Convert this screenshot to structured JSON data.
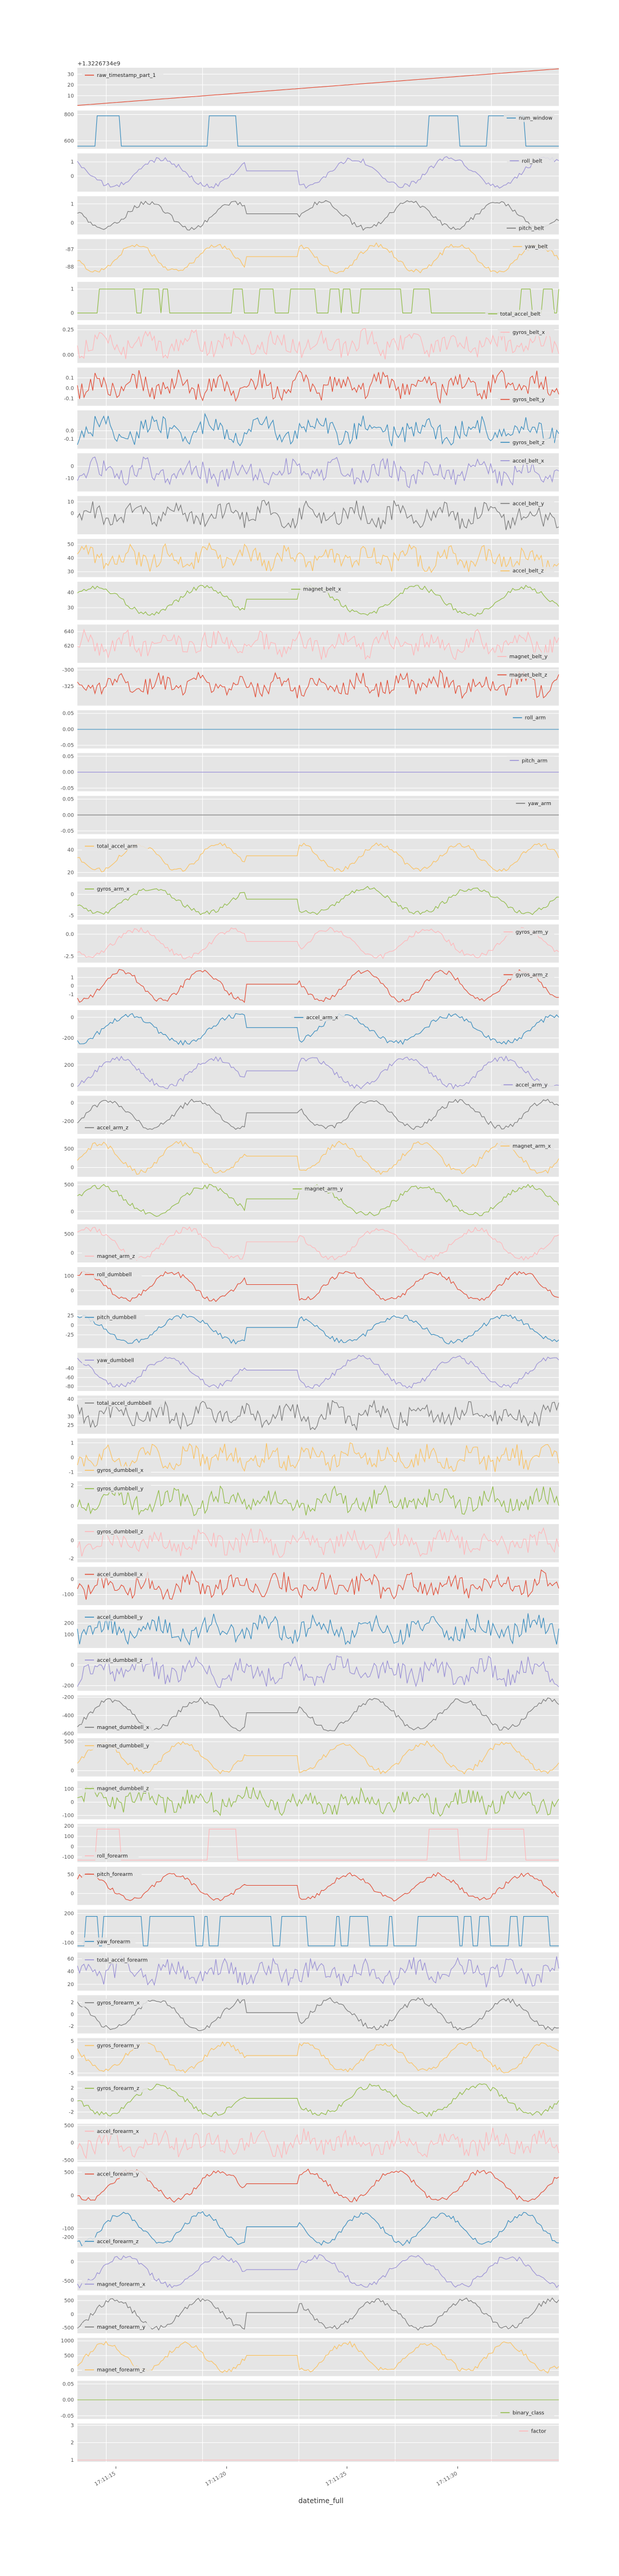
{
  "chart_data": {
    "type": "line",
    "xlabel": "datetime_full",
    "x_tick_labels": [
      "17:11:15",
      "17:11:20",
      "17:11:25",
      "17:11:30"
    ],
    "top_offset_label": "+1.3226734e9",
    "grid": true,
    "background": "#e5e5e5",
    "palette": [
      "#E24A33",
      "#348ABD",
      "#988ED5",
      "#777777",
      "#FBC15E",
      "#8EBA42",
      "#FFB5B8"
    ],
    "legend_placement": "per-panel",
    "panels": [
      {
        "name": "raw_timestamp_part_1",
        "color": "#E24A33",
        "ylim": [
          0.5,
          36
        ],
        "yticks": [
          "30",
          "20",
          "10"
        ],
        "legend": "left",
        "kind": "ramp",
        "values": [
          1,
          35
        ]
      },
      {
        "name": "num_window",
        "color": "#348ABD",
        "ylim": [
          540,
          830
        ],
        "yticks": [
          "800",
          "600"
        ],
        "legend": "right",
        "kind": "pulses",
        "values": [
          560,
          790
        ]
      },
      {
        "name": "roll_belt",
        "color": "#988ED5",
        "ylim": [
          -1.1,
          1.6
        ],
        "yticks": [
          "1",
          "0"
        ],
        "legend": "right",
        "kind": "wave",
        "values": [
          -0.9,
          1.4
        ]
      },
      {
        "name": "pitch_belt",
        "color": "#777777",
        "ylim": [
          -0.6,
          1.4
        ],
        "yticks": [
          "1",
          "0"
        ],
        "legend": "right-bottom",
        "kind": "wave",
        "values": [
          -0.4,
          1.2
        ]
      },
      {
        "name": "yaw_belt",
        "color": "#FBC15E",
        "ylim": [
          -88.6,
          -86.4
        ],
        "yticks": [
          "-87",
          "-88"
        ],
        "legend": "right",
        "kind": "wave",
        "values": [
          -88.4,
          -86.6
        ]
      },
      {
        "name": "total_accel_belt",
        "color": "#8EBA42",
        "ylim": [
          -0.3,
          1.3
        ],
        "yticks": [
          "1",
          "0"
        ],
        "legend": "right-bottom",
        "kind": "steps",
        "values": [
          0,
          1
        ]
      },
      {
        "name": "gyros_belt_x",
        "color": "#FFB5B8",
        "ylim": [
          -0.08,
          0.3
        ],
        "yticks": [
          "0.25",
          "0.00"
        ],
        "legend": "right",
        "kind": "noise",
        "values": [
          -0.05,
          0.27
        ]
      },
      {
        "name": "gyros_belt_y",
        "color": "#E24A33",
        "ylim": [
          -0.17,
          0.2
        ],
        "yticks": [
          "0.1",
          "0.0",
          "-0.1"
        ],
        "legend": "right-bottom",
        "kind": "noise",
        "values": [
          -0.15,
          0.18
        ]
      },
      {
        "name": "gyros_belt_z",
        "color": "#348ABD",
        "ylim": [
          -0.22,
          0.25
        ],
        "yticks": [
          "0.0",
          "-0.1"
        ],
        "legend": "right-bottom",
        "kind": "noise",
        "values": [
          -0.2,
          0.22
        ]
      },
      {
        "name": "accel_belt_x",
        "color": "#988ED5",
        "ylim": [
          -21,
          11
        ],
        "yticks": [
          "0",
          "-10"
        ],
        "legend": "right",
        "kind": "noise",
        "values": [
          -18,
          8
        ]
      },
      {
        "name": "accel_belt_y",
        "color": "#777777",
        "ylim": [
          -18,
          15
        ],
        "yticks": [
          "10",
          "0"
        ],
        "legend": "right",
        "kind": "noise",
        "values": [
          -15,
          12
        ]
      },
      {
        "name": "accel_belt_z",
        "color": "#FBC15E",
        "ylim": [
          26,
          54
        ],
        "yticks": [
          "50",
          "40",
          "30"
        ],
        "legend": "right-bottom",
        "kind": "noise",
        "values": [
          29,
          51
        ]
      },
      {
        "name": "magnet_belt_x",
        "color": "#8EBA42",
        "ylim": [
          22,
          47
        ],
        "yticks": [
          "40",
          "30"
        ],
        "legend": "center",
        "kind": "wave",
        "values": [
          24,
          45
        ]
      },
      {
        "name": "magnet_belt_y",
        "color": "#FFB5B8",
        "ylim": [
          596,
          650
        ],
        "yticks": [
          "640",
          "620"
        ],
        "legend": "right-bottom",
        "kind": "noise",
        "values": [
          600,
          645
        ]
      },
      {
        "name": "magnet_belt_z",
        "color": "#E24A33",
        "ylim": [
          -355,
          -296
        ],
        "yticks": [
          "-300",
          "-325"
        ],
        "legend": "right",
        "kind": "noise",
        "values": [
          -345,
          -300
        ]
      },
      {
        "name": "roll_arm",
        "color": "#348ABD",
        "ylim": [
          -0.06,
          0.06
        ],
        "yticks": [
          "0.05",
          "0.00",
          "-0.05"
        ],
        "legend": "right",
        "kind": "flat",
        "values": [
          0,
          0
        ]
      },
      {
        "name": "pitch_arm",
        "color": "#988ED5",
        "ylim": [
          -0.06,
          0.06
        ],
        "yticks": [
          "0.05",
          "0.00",
          "-0.05"
        ],
        "legend": "right",
        "kind": "flat",
        "values": [
          0,
          0
        ]
      },
      {
        "name": "yaw_arm",
        "color": "#777777",
        "ylim": [
          -0.06,
          0.06
        ],
        "yticks": [
          "0.05",
          "0.00",
          "-0.05"
        ],
        "legend": "right",
        "kind": "flat",
        "values": [
          0,
          0
        ]
      },
      {
        "name": "total_accel_arm",
        "color": "#FBC15E",
        "ylim": [
          16,
          50
        ],
        "yticks": [
          "40",
          "20"
        ],
        "legend": "left",
        "kind": "wave",
        "values": [
          20,
          47
        ]
      },
      {
        "name": "gyros_arm_x",
        "color": "#8EBA42",
        "ylim": [
          -6,
          3
        ],
        "yticks": [
          "0",
          "-5"
        ],
        "legend": "left",
        "kind": "wave",
        "values": [
          -5,
          2
        ]
      },
      {
        "name": "gyros_arm_y",
        "color": "#FFB5B8",
        "ylim": [
          -3.2,
          1.1
        ],
        "yticks": [
          "0.0",
          "-2.5"
        ],
        "legend": "right",
        "kind": "wave",
        "values": [
          -2.8,
          0.8
        ]
      },
      {
        "name": "gyros_arm_z",
        "color": "#E24A33",
        "ylim": [
          -2.3,
          2.2
        ],
        "yticks": [
          "1",
          "0",
          "-1"
        ],
        "legend": "right",
        "kind": "wave",
        "values": [
          -2,
          2
        ]
      },
      {
        "name": "accel_arm_x",
        "color": "#348ABD",
        "ylim": [
          -300,
          70
        ],
        "yticks": [
          "0",
          "-200"
        ],
        "legend": "center",
        "kind": "wave",
        "values": [
          -270,
          40
        ]
      },
      {
        "name": "accel_arm_y",
        "color": "#988ED5",
        "ylim": [
          -60,
          320
        ],
        "yticks": [
          "200",
          "0"
        ],
        "legend": "right-bottom",
        "kind": "wave",
        "values": [
          -40,
          290
        ]
      },
      {
        "name": "accel_arm_z",
        "color": "#777777",
        "ylim": [
          -340,
          80
        ],
        "yticks": [
          "0",
          "-200"
        ],
        "legend": "left-bottom",
        "kind": "wave",
        "values": [
          -300,
          50
        ]
      },
      {
        "name": "magnet_arm_x",
        "color": "#FBC15E",
        "ylim": [
          -250,
          780
        ],
        "yticks": [
          "500",
          "0"
        ],
        "legend": "right",
        "kind": "wave",
        "values": [
          -200,
          720
        ]
      },
      {
        "name": "magnet_arm_y",
        "color": "#8EBA42",
        "ylim": [
          -150,
          560
        ],
        "yticks": [
          "500",
          "0"
        ],
        "legend": "center",
        "kind": "wave",
        "values": [
          -100,
          510
        ]
      },
      {
        "name": "magnet_arm_z",
        "color": "#FFB5B8",
        "ylim": [
          -250,
          760
        ],
        "yticks": [
          "500",
          "0"
        ],
        "legend": "left-bottom",
        "kind": "wave",
        "values": [
          -200,
          700
        ]
      },
      {
        "name": "roll_dumbbell",
        "color": "#E24A33",
        "ylim": [
          -100,
          160
        ],
        "yticks": [
          "100",
          "0"
        ],
        "legend": "left",
        "kind": "wave",
        "values": [
          -80,
          140
        ]
      },
      {
        "name": "pitch_dumbbell",
        "color": "#348ABD",
        "ylim": [
          -60,
          40
        ],
        "yticks": [
          "25",
          "0",
          "-25"
        ],
        "legend": "left",
        "kind": "wave",
        "values": [
          -50,
          30
        ]
      },
      {
        "name": "yaw_dumbbell",
        "color": "#988ED5",
        "ylim": [
          -90,
          -5
        ],
        "yticks": [
          "-40",
          "-60",
          "-80"
        ],
        "legend": "left",
        "kind": "wave",
        "values": [
          -85,
          -10
        ]
      },
      {
        "name": "total_accel_dumbbell",
        "color": "#777777",
        "ylim": [
          20,
          42
        ],
        "yticks": [
          "40",
          "30",
          "25"
        ],
        "legend": "left",
        "kind": "noise",
        "values": [
          22,
          40
        ]
      },
      {
        "name": "gyros_dumbbell_x",
        "color": "#FBC15E",
        "ylim": [
          -1.3,
          1.3
        ],
        "yticks": [
          "1",
          "0",
          "-1"
        ],
        "legend": "left-bottom",
        "kind": "noise",
        "values": [
          -1.1,
          1.1
        ]
      },
      {
        "name": "gyros_dumbbell_y",
        "color": "#8EBA42",
        "ylim": [
          -1.3,
          2.4
        ],
        "yticks": [
          "2",
          "0"
        ],
        "legend": "left",
        "kind": "noise",
        "values": [
          -1,
          2
        ]
      },
      {
        "name": "gyros_dumbbell_z",
        "color": "#FFB5B8",
        "ylim": [
          -2.4,
          1.8
        ],
        "yticks": [
          "0",
          "-2"
        ],
        "legend": "left",
        "kind": "noise",
        "values": [
          -2,
          1.5
        ]
      },
      {
        "name": "accel_dumbbell_x",
        "color": "#E24A33",
        "ylim": [
          -170,
          80
        ],
        "yticks": [
          "0",
          "-100"
        ],
        "legend": "left",
        "kind": "noise",
        "values": [
          -150,
          60
        ]
      },
      {
        "name": "accel_dumbbell_y",
        "color": "#348ABD",
        "ylim": [
          -20,
          320
        ],
        "yticks": [
          "200",
          "100"
        ],
        "legend": "left",
        "kind": "noise",
        "values": [
          0,
          300
        ]
      },
      {
        "name": "accel_dumbbell_z",
        "color": "#988ED5",
        "ylim": [
          -250,
          120
        ],
        "yticks": [
          "0",
          "-200"
        ],
        "legend": "left",
        "kind": "noise",
        "values": [
          -220,
          100
        ]
      },
      {
        "name": "magnet_dumbbell_x",
        "color": "#777777",
        "ylim": [
          -600,
          -180
        ],
        "yticks": [
          "-200",
          "-400",
          "-600"
        ],
        "legend": "left-bottom",
        "kind": "wave",
        "values": [
          -580,
          -200
        ]
      },
      {
        "name": "magnet_dumbbell_y",
        "color": "#FBC15E",
        "ylim": [
          -100,
          560
        ],
        "yticks": [
          "500",
          "0"
        ],
        "legend": "left",
        "kind": "wave",
        "values": [
          -60,
          520
        ]
      },
      {
        "name": "magnet_dumbbell_z",
        "color": "#8EBA42",
        "ylim": [
          -130,
          160
        ],
        "yticks": [
          "100",
          "0",
          "-100"
        ],
        "legend": "left",
        "kind": "noise",
        "values": [
          -110,
          130
        ]
      },
      {
        "name": "roll_forearm",
        "color": "#FFB5B8",
        "ylim": [
          -150,
          220
        ],
        "yticks": [
          "200",
          "100",
          "0",
          "-100"
        ],
        "legend": "left-bottom",
        "kind": "pulses",
        "values": [
          -130,
          170
        ]
      },
      {
        "name": "pitch_forearm",
        "color": "#E24A33",
        "ylim": [
          -30,
          70
        ],
        "yticks": [
          "50",
          "0"
        ],
        "legend": "left",
        "kind": "wave",
        "values": [
          -20,
          55
        ]
      },
      {
        "name": "yaw_forearm",
        "color": "#348ABD",
        "ylim": [
          -150,
          240
        ],
        "yticks": [
          "200",
          "0",
          "-100"
        ],
        "legend": "left-bottom",
        "kind": "steps",
        "values": [
          -130,
          170
        ]
      },
      {
        "name": "total_accel_forearm",
        "color": "#988ED5",
        "ylim": [
          10,
          70
        ],
        "yticks": [
          "60",
          "40",
          "20"
        ],
        "legend": "left",
        "kind": "noise",
        "values": [
          15,
          65
        ]
      },
      {
        "name": "gyros_forearm_x",
        "color": "#777777",
        "ylim": [
          -3.2,
          3.2
        ],
        "yticks": [
          "2",
          "0",
          "-2"
        ],
        "legend": "left",
        "kind": "wave",
        "values": [
          -2.8,
          2.8
        ]
      },
      {
        "name": "gyros_forearm_y",
        "color": "#FBC15E",
        "ylim": [
          -6,
          6
        ],
        "yticks": [
          "5",
          "0",
          "-5"
        ],
        "legend": "left",
        "kind": "wave",
        "values": [
          -5,
          5
        ]
      },
      {
        "name": "gyros_forearm_z",
        "color": "#8EBA42",
        "ylim": [
          -3.2,
          3.2
        ],
        "yticks": [
          "2",
          "0",
          "-2"
        ],
        "legend": "left",
        "kind": "wave",
        "values": [
          -2.8,
          2.8
        ]
      },
      {
        "name": "accel_forearm_x",
        "color": "#FFB5B8",
        "ylim": [
          -550,
          550
        ],
        "yticks": [
          "500",
          "0",
          "-500"
        ],
        "legend": "left",
        "kind": "noise",
        "values": [
          -450,
          450
        ]
      },
      {
        "name": "accel_forearm_y",
        "color": "#E24A33",
        "ylim": [
          -200,
          620
        ],
        "yticks": [
          "500",
          "0"
        ],
        "legend": "left",
        "kind": "wave",
        "values": [
          -150,
          580
        ]
      },
      {
        "name": "accel_forearm_z",
        "color": "#348ABD",
        "ylim": [
          -320,
          120
        ],
        "yticks": [
          "-100",
          "-200"
        ],
        "legend": "left-bottom",
        "kind": "wave",
        "values": [
          -300,
          100
        ]
      },
      {
        "name": "magnet_forearm_x",
        "color": "#988ED5",
        "ylim": [
          -750,
          250
        ],
        "yticks": [
          "0",
          "-500"
        ],
        "legend": "left-bottom",
        "kind": "wave",
        "values": [
          -700,
          200
        ]
      },
      {
        "name": "magnet_forearm_y",
        "color": "#777777",
        "ylim": [
          -700,
          700
        ],
        "yticks": [
          "500",
          "0",
          "-500"
        ],
        "legend": "left-bottom",
        "kind": "wave",
        "values": [
          -600,
          600
        ]
      },
      {
        "name": "magnet_forearm_z",
        "color": "#FBC15E",
        "ylim": [
          -200,
          1100
        ],
        "yticks": [
          "1000",
          "500",
          "0"
        ],
        "legend": "left-bottom",
        "kind": "wave",
        "values": [
          -100,
          1000
        ]
      },
      {
        "name": "binary_class",
        "color": "#8EBA42",
        "ylim": [
          -0.06,
          0.06
        ],
        "yticks": [
          "0.05",
          "0.00",
          "-0.05"
        ],
        "legend": "right-bottom",
        "kind": "flat",
        "values": [
          0,
          0
        ]
      },
      {
        "name": "factor",
        "color": "#FFB5B8",
        "ylim": [
          0.9,
          3.1
        ],
        "yticks": [
          "3",
          "2",
          "1"
        ],
        "legend": "right",
        "kind": "flat",
        "values": [
          1,
          1
        ]
      }
    ]
  }
}
